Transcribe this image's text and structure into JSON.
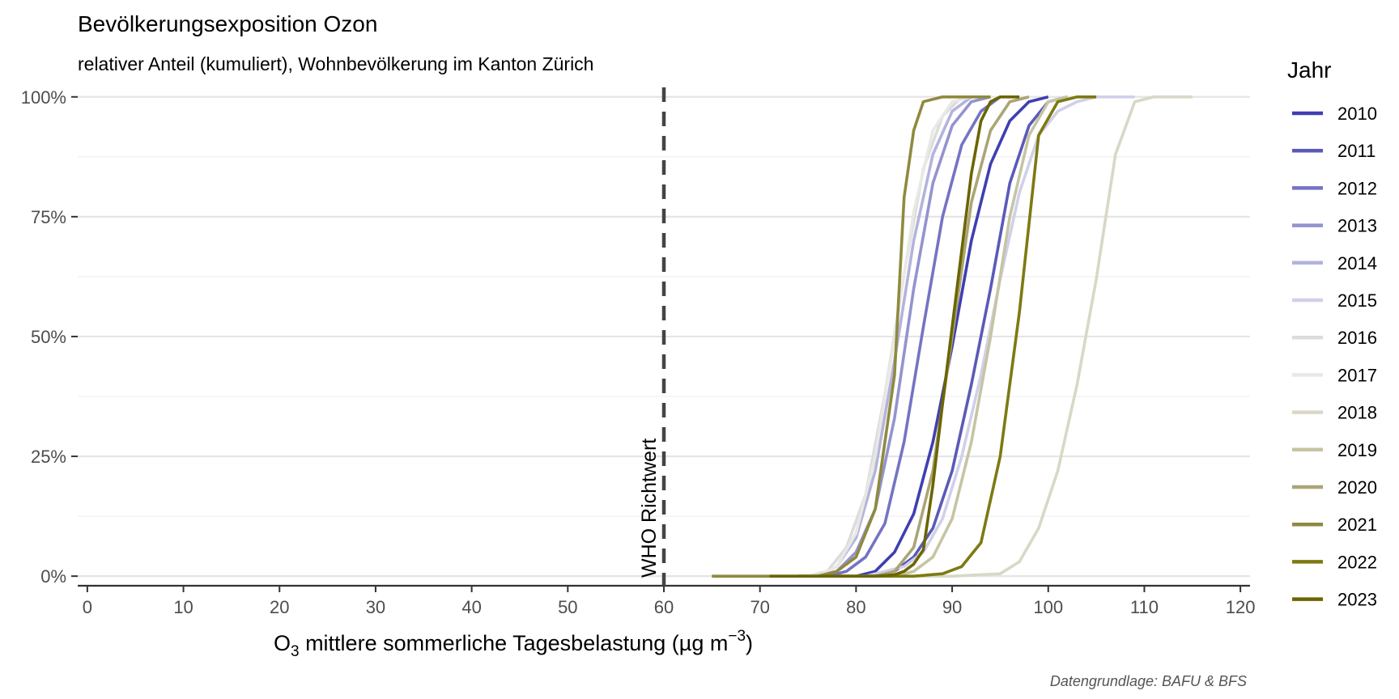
{
  "chart_data": {
    "type": "line",
    "title": "Bevölkerungsexposition Ozon",
    "subtitle": "relativer Anteil (kumuliert), Wohnbevölkerung im Kanton Zürich",
    "xlabel_prefix": "O",
    "xlabel_sub": "3",
    "xlabel_main": " mittlere sommerliche Tagesbelastung (µg m",
    "xlabel_sup": "−3",
    "xlabel_end": ")",
    "caption": "Datengrundlage: BAFU & BFS",
    "xlim": [
      -1,
      121
    ],
    "ylim": [
      -0.02,
      1.03
    ],
    "x_ticks": [
      0,
      10,
      20,
      30,
      40,
      50,
      60,
      70,
      80,
      90,
      100,
      110,
      120
    ],
    "x_tick_labels": [
      "0",
      "10",
      "20",
      "30",
      "40",
      "50",
      "60",
      "70",
      "80",
      "90",
      "100",
      "110",
      "120"
    ],
    "y_ticks": [
      0,
      0.25,
      0.5,
      0.75,
      1
    ],
    "y_tick_labels": [
      "0%",
      "25%",
      "50%",
      "75%",
      "100%"
    ],
    "reference_line": {
      "x": 60,
      "label": "WHO Richtwert"
    },
    "legend_title": "Jahr",
    "legend_position": "right",
    "grid": true,
    "series": [
      {
        "name": "2010",
        "color": "#3f3fb0",
        "points": [
          [
            80,
            0
          ],
          [
            82,
            0.01
          ],
          [
            84,
            0.05
          ],
          [
            86,
            0.13
          ],
          [
            88,
            0.28
          ],
          [
            90,
            0.48
          ],
          [
            92,
            0.7
          ],
          [
            94,
            0.86
          ],
          [
            96,
            0.95
          ],
          [
            98,
            0.99
          ],
          [
            100,
            1.0
          ]
        ]
      },
      {
        "name": "2011",
        "color": "#5a5ab8",
        "points": [
          [
            78,
            0
          ],
          [
            80,
            0
          ],
          [
            82,
            0
          ],
          [
            84,
            0.01
          ],
          [
            86,
            0.04
          ],
          [
            88,
            0.1
          ],
          [
            90,
            0.22
          ],
          [
            92,
            0.4
          ],
          [
            94,
            0.6
          ],
          [
            96,
            0.82
          ],
          [
            98,
            0.94
          ],
          [
            100,
            0.99
          ],
          [
            102,
            1.0
          ]
        ]
      },
      {
        "name": "2012",
        "color": "#7474c4",
        "points": [
          [
            75,
            0
          ],
          [
            77,
            0
          ],
          [
            79,
            0.01
          ],
          [
            81,
            0.04
          ],
          [
            83,
            0.11
          ],
          [
            85,
            0.28
          ],
          [
            87,
            0.52
          ],
          [
            89,
            0.75
          ],
          [
            91,
            0.9
          ],
          [
            93,
            0.97
          ],
          [
            95,
            1.0
          ]
        ]
      },
      {
        "name": "2013",
        "color": "#9393d0",
        "points": [
          [
            74,
            0
          ],
          [
            76,
            0
          ],
          [
            78,
            0.01
          ],
          [
            80,
            0.05
          ],
          [
            82,
            0.14
          ],
          [
            84,
            0.33
          ],
          [
            86,
            0.6
          ],
          [
            88,
            0.82
          ],
          [
            90,
            0.94
          ],
          [
            92,
            0.99
          ],
          [
            94,
            1.0
          ]
        ]
      },
      {
        "name": "2014",
        "color": "#b3b3dd",
        "points": [
          [
            74,
            0
          ],
          [
            76,
            0
          ],
          [
            78,
            0.02
          ],
          [
            80,
            0.08
          ],
          [
            82,
            0.22
          ],
          [
            84,
            0.45
          ],
          [
            86,
            0.7
          ],
          [
            88,
            0.88
          ],
          [
            90,
            0.97
          ],
          [
            92,
            1.0
          ]
        ]
      },
      {
        "name": "2015",
        "color": "#d0d0ea",
        "points": [
          [
            79,
            0
          ],
          [
            81,
            0
          ],
          [
            83,
            0.01
          ],
          [
            85,
            0.02
          ],
          [
            87,
            0.05
          ],
          [
            89,
            0.12
          ],
          [
            91,
            0.25
          ],
          [
            93,
            0.42
          ],
          [
            95,
            0.62
          ],
          [
            97,
            0.8
          ],
          [
            99,
            0.92
          ],
          [
            101,
            0.97
          ],
          [
            103,
            0.99
          ],
          [
            105,
            1.0
          ],
          [
            109,
            1.0
          ]
        ]
      },
      {
        "name": "2016",
        "color": "#dcdcdc",
        "points": [
          [
            73,
            0
          ],
          [
            75,
            0
          ],
          [
            77,
            0.01
          ],
          [
            79,
            0.06
          ],
          [
            81,
            0.17
          ],
          [
            83,
            0.38
          ],
          [
            85,
            0.63
          ],
          [
            87,
            0.85
          ],
          [
            89,
            0.96
          ],
          [
            91,
            1.0
          ]
        ]
      },
      {
        "name": "2017",
        "color": "#e8e8e4",
        "points": [
          [
            74,
            0
          ],
          [
            76,
            0
          ],
          [
            78,
            0.02
          ],
          [
            80,
            0.09
          ],
          [
            82,
            0.25
          ],
          [
            84,
            0.5
          ],
          [
            86,
            0.76
          ],
          [
            88,
            0.93
          ],
          [
            90,
            0.99
          ],
          [
            92,
            1.0
          ]
        ]
      },
      {
        "name": "2018",
        "color": "#d9d7c6",
        "points": [
          [
            84,
            0
          ],
          [
            90,
            0
          ],
          [
            95,
            0.005
          ],
          [
            97,
            0.03
          ],
          [
            99,
            0.1
          ],
          [
            101,
            0.22
          ],
          [
            103,
            0.4
          ],
          [
            105,
            0.62
          ],
          [
            107,
            0.88
          ],
          [
            109,
            0.99
          ],
          [
            111,
            1.0
          ],
          [
            115,
            1.0
          ]
        ]
      },
      {
        "name": "2019",
        "color": "#c7c4a4",
        "points": [
          [
            80,
            0
          ],
          [
            84,
            0
          ],
          [
            86,
            0.01
          ],
          [
            88,
            0.04
          ],
          [
            90,
            0.12
          ],
          [
            92,
            0.28
          ],
          [
            94,
            0.5
          ],
          [
            96,
            0.75
          ],
          [
            98,
            0.92
          ],
          [
            100,
            0.99
          ],
          [
            102,
            1.0
          ]
        ]
      },
      {
        "name": "2020",
        "color": "#aba576",
        "points": [
          [
            78,
            0
          ],
          [
            82,
            0
          ],
          [
            84,
            0.01
          ],
          [
            86,
            0.06
          ],
          [
            88,
            0.22
          ],
          [
            90,
            0.5
          ],
          [
            92,
            0.78
          ],
          [
            94,
            0.93
          ],
          [
            96,
            0.99
          ],
          [
            98,
            1.0
          ]
        ]
      },
      {
        "name": "2021",
        "color": "#8f8a3e",
        "points": [
          [
            65,
            0
          ],
          [
            70,
            0
          ],
          [
            74,
            0
          ],
          [
            76,
            0
          ],
          [
            78,
            0.01
          ],
          [
            80,
            0.04
          ],
          [
            82,
            0.14
          ],
          [
            84,
            0.42
          ],
          [
            85,
            0.79
          ],
          [
            86,
            0.93
          ],
          [
            87,
            0.99
          ],
          [
            89,
            1.0
          ],
          [
            94,
            1.0
          ]
        ]
      },
      {
        "name": "2022",
        "color": "#7d7a12",
        "points": [
          [
            74,
            0
          ],
          [
            80,
            0
          ],
          [
            86,
            0
          ],
          [
            89,
            0.005
          ],
          [
            91,
            0.02
          ],
          [
            93,
            0.07
          ],
          [
            95,
            0.25
          ],
          [
            97,
            0.55
          ],
          [
            99,
            0.92
          ],
          [
            101,
            0.99
          ],
          [
            103,
            1.0
          ],
          [
            105,
            1.0
          ]
        ]
      },
      {
        "name": "2023",
        "color": "#6b6500",
        "points": [
          [
            71,
            0
          ],
          [
            76,
            0
          ],
          [
            80,
            0
          ],
          [
            82,
            0
          ],
          [
            84,
            0.003
          ],
          [
            85,
            0.01
          ],
          [
            86,
            0.025
          ],
          [
            87,
            0.055
          ],
          [
            88,
            0.19
          ],
          [
            89,
            0.36
          ],
          [
            90,
            0.52
          ],
          [
            91,
            0.68
          ],
          [
            92,
            0.84
          ],
          [
            93,
            0.95
          ],
          [
            94,
            0.99
          ],
          [
            95,
            1.0
          ],
          [
            97,
            1.0
          ]
        ]
      }
    ]
  }
}
